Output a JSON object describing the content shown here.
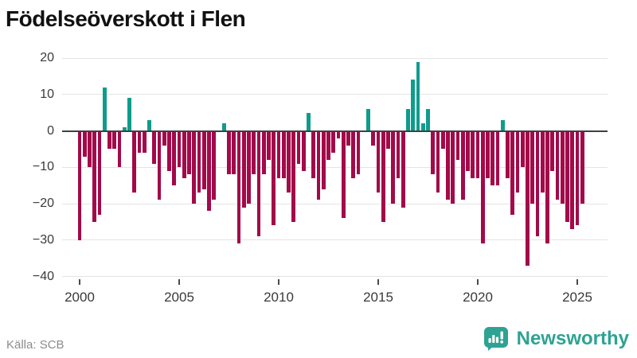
{
  "header": {
    "title": "Födelseöverskott i Flen"
  },
  "chart_data": {
    "type": "bar",
    "title": "Födelseöverskott i Flen",
    "frequency": "quarterly",
    "start_year": 2000,
    "start_quarter": 1,
    "end_period": "2025 Q2",
    "values": [
      -30,
      -7,
      -10,
      -25,
      -23,
      12,
      -5,
      -5,
      -10,
      1,
      9,
      -17,
      -6,
      -6,
      3,
      -9,
      -19,
      -4,
      -11,
      -15,
      -10,
      -13,
      -12,
      -20,
      -17,
      -16,
      -22,
      -19,
      0,
      2,
      -12,
      -12,
      -31,
      -21,
      -20,
      -12,
      -29,
      -12,
      -8,
      -26,
      -13,
      -13,
      -17,
      -25,
      -9,
      -11,
      5,
      -13,
      -19,
      -16,
      -8,
      -6,
      -2,
      -24,
      -4,
      -13,
      -12,
      0,
      6,
      -4,
      -17,
      -25,
      -5,
      -20,
      -13,
      -21,
      6,
      14,
      19,
      2,
      6,
      -12,
      -17,
      -5,
      -19,
      -20,
      -8,
      -19,
      -11,
      -13,
      -13,
      -31,
      -13,
      -15,
      -15,
      3,
      -13,
      -23,
      -17,
      -10,
      -37,
      -20,
      -29,
      -17,
      -31,
      -11,
      -19,
      -20,
      -25,
      -27,
      -26,
      -20
    ],
    "y_ticks": [
      20,
      10,
      0,
      -10,
      -20,
      -30,
      -40
    ],
    "x_ticks": [
      2000,
      2005,
      2010,
      2015,
      2020,
      2025
    ],
    "ylim": [
      -40,
      20
    ],
    "grid": true,
    "legend": "none",
    "positive_color": "#0e9c8d",
    "negative_color": "#a20a4a"
  },
  "footer": {
    "source": "Källa: SCB",
    "brand": "Newsworthy",
    "brand_color": "#2ea293",
    "icon": "bar-chart-speech-bubble"
  }
}
